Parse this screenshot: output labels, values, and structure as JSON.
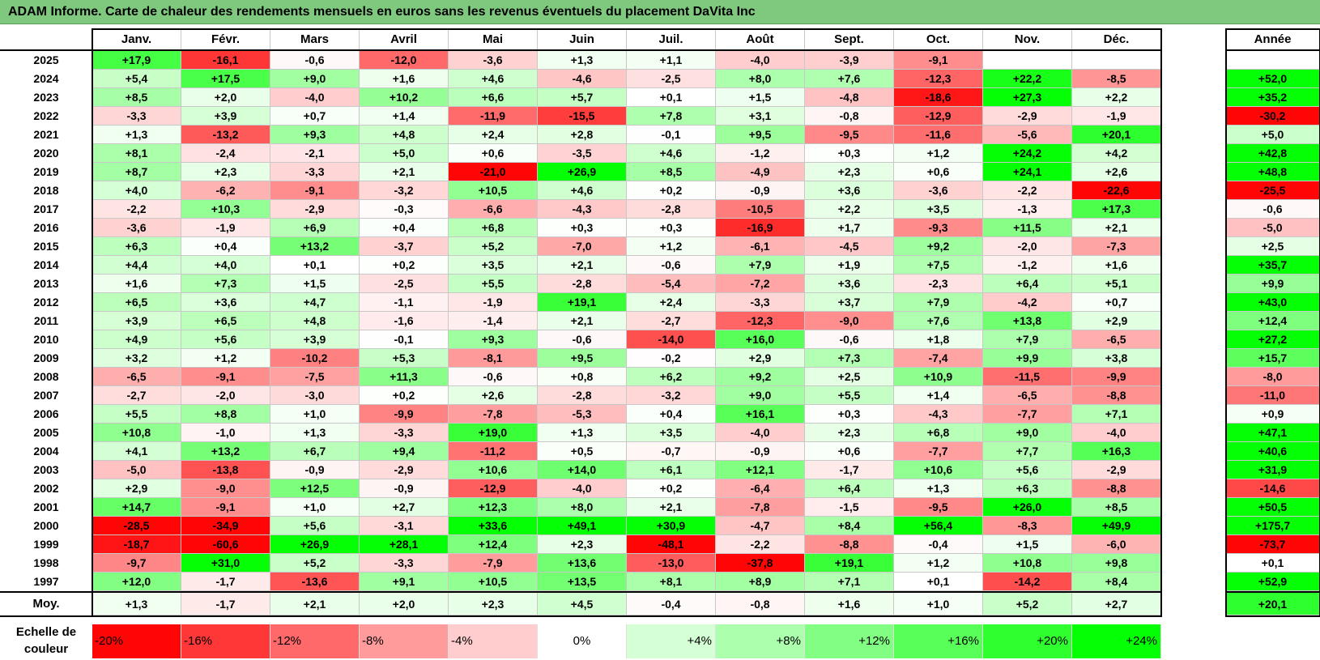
{
  "title": "ADAM Informe. Carte de chaleur des rendements mensuels en euros sans les revenus éventuels du placement DaVita Inc",
  "chart_data": {
    "type": "heatmap",
    "title": "ADAM Informe. Carte de chaleur des rendements mensuels en euros sans les revenus éventuels du placement DaVita Inc",
    "months": [
      "Janv.",
      "Févr.",
      "Mars",
      "Avril",
      "Mai",
      "Juin",
      "Juil.",
      "Août",
      "Sept.",
      "Oct.",
      "Nov.",
      "Déc."
    ],
    "year_column_label": "Année",
    "rows": [
      {
        "year": "2025",
        "values": [
          "+17,9",
          "-16,1",
          "-0,6",
          "-12,0",
          "-3,6",
          "+1,3",
          "+1,1",
          "-4,0",
          "-3,9",
          "-9,1",
          "",
          ""
        ],
        "annual": ""
      },
      {
        "year": "2024",
        "values": [
          "+5,4",
          "+17,5",
          "+9,0",
          "+1,6",
          "+4,6",
          "-4,6",
          "-2,5",
          "+8,0",
          "+7,6",
          "-12,3",
          "+22,2",
          "-8,5"
        ],
        "annual": "+52,0"
      },
      {
        "year": "2023",
        "values": [
          "+8,5",
          "+2,0",
          "-4,0",
          "+10,2",
          "+6,6",
          "+5,7",
          "+0,1",
          "+1,5",
          "-4,8",
          "-18,6",
          "+27,3",
          "+2,2"
        ],
        "annual": "+35,2"
      },
      {
        "year": "2022",
        "values": [
          "-3,3",
          "+3,9",
          "+0,7",
          "+1,4",
          "-11,9",
          "-15,5",
          "+7,8",
          "+3,1",
          "-0,8",
          "-12,9",
          "-2,9",
          "-1,9"
        ],
        "annual": "-30,2"
      },
      {
        "year": "2021",
        "values": [
          "+1,3",
          "-13,2",
          "+9,3",
          "+4,8",
          "+2,4",
          "+2,8",
          "-0,1",
          "+9,5",
          "-9,5",
          "-11,6",
          "-5,6",
          "+20,1"
        ],
        "annual": "+5,0"
      },
      {
        "year": "2020",
        "values": [
          "+8,1",
          "-2,4",
          "-2,1",
          "+5,0",
          "+0,6",
          "-3,5",
          "+4,6",
          "-1,2",
          "+0,3",
          "+1,2",
          "+24,2",
          "+4,2"
        ],
        "annual": "+42,8"
      },
      {
        "year": "2019",
        "values": [
          "+8,7",
          "+2,3",
          "-3,3",
          "+2,1",
          "-21,0",
          "+26,9",
          "+8,5",
          "-4,9",
          "+2,3",
          "+0,6",
          "+24,1",
          "+2,6"
        ],
        "annual": "+48,8"
      },
      {
        "year": "2018",
        "values": [
          "+4,0",
          "-6,2",
          "-9,1",
          "-3,2",
          "+10,5",
          "+4,6",
          "+0,2",
          "-0,9",
          "+3,6",
          "-3,6",
          "-2,2",
          "-22,6"
        ],
        "annual": "-25,5"
      },
      {
        "year": "2017",
        "values": [
          "-2,2",
          "+10,3",
          "-2,9",
          "-0,3",
          "-6,6",
          "-4,3",
          "-2,8",
          "-10,5",
          "+2,2",
          "+3,5",
          "-1,3",
          "+17,3"
        ],
        "annual": "-0,6"
      },
      {
        "year": "2016",
        "values": [
          "-3,6",
          "-1,9",
          "+6,9",
          "+0,4",
          "+6,8",
          "+0,3",
          "+0,3",
          "-16,9",
          "+1,7",
          "-9,3",
          "+11,5",
          "+2,1"
        ],
        "annual": "-5,0"
      },
      {
        "year": "2015",
        "values": [
          "+6,3",
          "+0,4",
          "+13,2",
          "-3,7",
          "+5,2",
          "-7,0",
          "+1,2",
          "-6,1",
          "-4,5",
          "+9,2",
          "-2,0",
          "-7,3"
        ],
        "annual": "+2,5"
      },
      {
        "year": "2014",
        "values": [
          "+4,4",
          "+4,0",
          "+0,1",
          "+0,2",
          "+3,5",
          "+2,1",
          "-0,6",
          "+7,9",
          "+1,9",
          "+7,5",
          "-1,2",
          "+1,6"
        ],
        "annual": "+35,7"
      },
      {
        "year": "2013",
        "values": [
          "+1,6",
          "+7,3",
          "+1,5",
          "-2,5",
          "+5,5",
          "-2,8",
          "-5,4",
          "-7,2",
          "+3,6",
          "-2,3",
          "+6,4",
          "+5,1"
        ],
        "annual": "+9,9"
      },
      {
        "year": "2012",
        "values": [
          "+6,5",
          "+3,6",
          "+4,7",
          "-1,1",
          "-1,9",
          "+19,1",
          "+2,4",
          "-3,3",
          "+3,7",
          "+7,9",
          "-4,2",
          "+0,7"
        ],
        "annual": "+43,0"
      },
      {
        "year": "2011",
        "values": [
          "+3,9",
          "+6,5",
          "+4,8",
          "-1,6",
          "-1,4",
          "+2,1",
          "-2,7",
          "-12,3",
          "-9,0",
          "+7,6",
          "+13,8",
          "+2,9"
        ],
        "annual": "+12,4"
      },
      {
        "year": "2010",
        "values": [
          "+4,9",
          "+5,6",
          "+3,9",
          "-0,1",
          "+9,3",
          "-0,6",
          "-14,0",
          "+16,0",
          "-0,6",
          "+1,8",
          "+7,9",
          "-6,5"
        ],
        "annual": "+27,2"
      },
      {
        "year": "2009",
        "values": [
          "+3,2",
          "+1,2",
          "-10,2",
          "+5,3",
          "-8,1",
          "+9,5",
          "-0,2",
          "+2,9",
          "+7,3",
          "-7,4",
          "+9,9",
          "+3,8"
        ],
        "annual": "+15,7"
      },
      {
        "year": "2008",
        "values": [
          "-6,5",
          "-9,1",
          "-7,5",
          "+11,3",
          "-0,6",
          "+0,8",
          "+6,2",
          "+9,2",
          "+2,5",
          "+10,9",
          "-11,5",
          "-9,9"
        ],
        "annual": "-8,0"
      },
      {
        "year": "2007",
        "values": [
          "-2,7",
          "-2,0",
          "-3,0",
          "+0,2",
          "+2,6",
          "-2,8",
          "-3,2",
          "+9,0",
          "+5,5",
          "+1,4",
          "-6,5",
          "-8,8"
        ],
        "annual": "-11,0"
      },
      {
        "year": "2006",
        "values": [
          "+5,5",
          "+8,8",
          "+1,0",
          "-9,9",
          "-7,8",
          "-5,3",
          "+0,4",
          "+16,1",
          "+0,3",
          "-4,3",
          "-7,7",
          "+7,1"
        ],
        "annual": "+0,9"
      },
      {
        "year": "2005",
        "values": [
          "+10,8",
          "-1,0",
          "+1,3",
          "-3,3",
          "+19,0",
          "+1,3",
          "+3,5",
          "-4,0",
          "+2,3",
          "+6,8",
          "+9,0",
          "-4,0"
        ],
        "annual": "+47,1"
      },
      {
        "year": "2004",
        "values": [
          "+4,1",
          "+13,2",
          "+6,7",
          "+9,4",
          "-11,2",
          "+0,5",
          "-0,7",
          "-0,9",
          "+0,6",
          "-7,7",
          "+7,7",
          "+16,3"
        ],
        "annual": "+40,6"
      },
      {
        "year": "2003",
        "values": [
          "-5,0",
          "-13,8",
          "-0,9",
          "-2,9",
          "+10,6",
          "+14,0",
          "+6,1",
          "+12,1",
          "-1,7",
          "+10,6",
          "+5,6",
          "-2,9"
        ],
        "annual": "+31,9"
      },
      {
        "year": "2002",
        "values": [
          "+2,9",
          "-9,0",
          "+12,5",
          "-0,9",
          "-12,9",
          "-4,0",
          "+0,2",
          "-6,4",
          "+6,4",
          "+1,3",
          "+6,3",
          "-8,8"
        ],
        "annual": "-14,6"
      },
      {
        "year": "2001",
        "values": [
          "+14,7",
          "-9,1",
          "+1,0",
          "+2,7",
          "+12,3",
          "+8,0",
          "+2,1",
          "-7,8",
          "-1,5",
          "-9,5",
          "+26,0",
          "+8,5"
        ],
        "annual": "+50,5"
      },
      {
        "year": "2000",
        "values": [
          "-28,5",
          "-34,9",
          "+5,6",
          "-3,1",
          "+33,6",
          "+49,1",
          "+30,9",
          "-4,7",
          "+8,4",
          "+56,4",
          "-8,3",
          "+49,9"
        ],
        "annual": "+175,7"
      },
      {
        "year": "1999",
        "values": [
          "-18,7",
          "-60,6",
          "+26,9",
          "+28,1",
          "+12,4",
          "+2,3",
          "-48,1",
          "-2,2",
          "-8,8",
          "-0,4",
          "+1,5",
          "-6,0"
        ],
        "annual": "-73,7"
      },
      {
        "year": "1998",
        "values": [
          "-9,7",
          "+31,0",
          "+5,2",
          "-3,3",
          "-7,9",
          "+13,6",
          "-13,0",
          "-37,8",
          "+19,1",
          "+1,2",
          "+10,8",
          "+9,8"
        ],
        "annual": "+0,1"
      },
      {
        "year": "1997",
        "values": [
          "+12,0",
          "-1,7",
          "-13,6",
          "+9,1",
          "+10,5",
          "+13,5",
          "+8,1",
          "+8,9",
          "+7,1",
          "+0,1",
          "-14,2",
          "+8,4"
        ],
        "annual": "+52,9"
      }
    ],
    "average": {
      "label": "Moy.",
      "values": [
        "+1,3",
        "-1,7",
        "+2,1",
        "+2,0",
        "+2,3",
        "+4,5",
        "-0,4",
        "-0,8",
        "+1,6",
        "+1,0",
        "+5,2",
        "+2,7"
      ],
      "annual": "+20,1"
    },
    "scale": {
      "label": "Echelle de couleur",
      "steps": [
        "-20%",
        "-16%",
        "-12%",
        "-8%",
        "-4%",
        "0%",
        "+4%",
        "+8%",
        "+12%",
        "+16%",
        "+20%",
        "+24%"
      ]
    },
    "colors": {
      "negative": "#ff0000",
      "neutral": "#ffffff",
      "positive": "#00ff00",
      "title_bar": "#7fc97f"
    }
  }
}
